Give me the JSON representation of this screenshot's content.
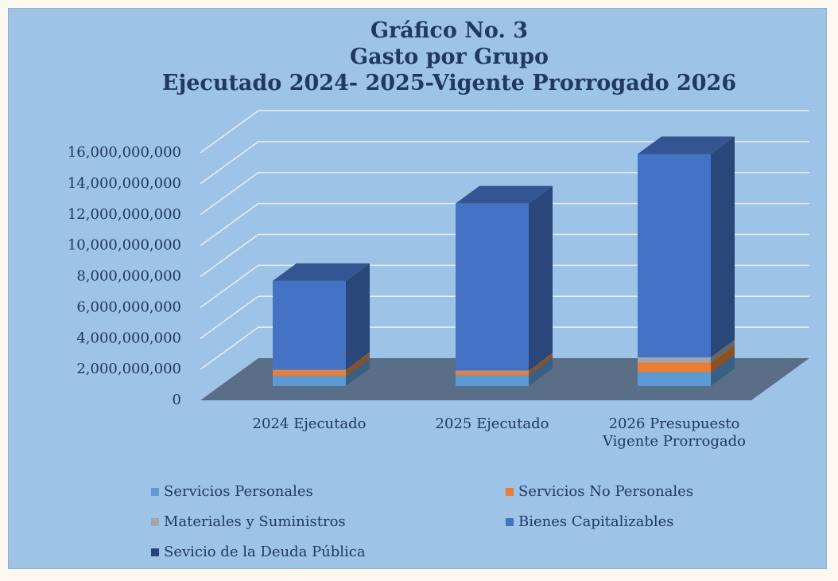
{
  "chart_data": {
    "type": "bar3d_stacked",
    "title": [
      "Gráfico No. 3",
      "Gasto por Grupo",
      "Ejecutado 2024- 2025-Vigente Prorrogado 2026"
    ],
    "categories": [
      "2024 Ejecutado",
      "2025 Ejecutado",
      "2026 Presupuesto Vigente Prorrogado"
    ],
    "series": [
      {
        "name": "Servicios Personales",
        "color": "#5b9bd5",
        "values": [
          650000000,
          700000000,
          900000000
        ]
      },
      {
        "name": "Servicios No Personales",
        "color": "#ed7d31",
        "values": [
          350000000,
          250000000,
          600000000
        ]
      },
      {
        "name": "Materiales y Suministros",
        "color": "#a5a5a5",
        "values": [
          50000000,
          50000000,
          350000000
        ]
      },
      {
        "name": "Bienes Capitalizables",
        "color": "#4472c4",
        "values": [
          5750000000,
          10800000000,
          13150000000
        ]
      },
      {
        "name": "Sevicio de la Deuda Pública",
        "color": "#264478",
        "values": [
          0,
          0,
          0
        ]
      }
    ],
    "ylim": [
      0,
      16000000000
    ],
    "yticks": [
      0,
      {
        "value": 2000000000,
        "label": "2,000,000,000"
      },
      {
        "value": 4000000000,
        "label": "4,000,000,000"
      },
      {
        "value": 6000000000,
        "label": "6,000,000,000"
      },
      {
        "value": 8000000000,
        "label": "8,000,000,000"
      },
      {
        "value": 10000000000,
        "label": "10,000,000,000"
      },
      {
        "value": 12000000000,
        "label": "12,000,000,000"
      },
      {
        "value": 14000000000,
        "label": "14,000,000,000"
      },
      {
        "value": 16000000000,
        "label": "16,000,000,000"
      }
    ],
    "grid": true
  }
}
